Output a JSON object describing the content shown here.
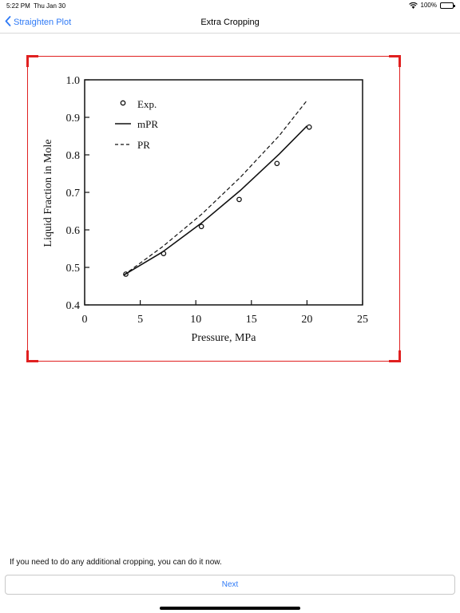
{
  "status": {
    "time": "5:22 PM",
    "date": "Thu Jan 30",
    "battery": "100%"
  },
  "nav": {
    "back_label": "Straighten Plot",
    "title": "Extra Cropping"
  },
  "chart_data": {
    "type": "scatter",
    "xlabel": "Pressure, MPa",
    "ylabel": "Liquid Fraction in Mole",
    "xlim": [
      0,
      25
    ],
    "ylim": [
      0.4,
      1.0
    ],
    "xticks": [
      0,
      5,
      10,
      15,
      20,
      25
    ],
    "yticks": [
      0.4,
      0.5,
      0.6,
      0.7,
      0.8,
      0.9,
      1.0
    ],
    "ytick_labels": [
      "0.4",
      "0.5",
      "0.6",
      "0.7",
      "0.8",
      "0.9",
      "1.0"
    ],
    "legend_position": "top-left",
    "series": [
      {
        "name": "Exp.",
        "style": "points",
        "x": [
          3.7,
          7.1,
          10.5,
          13.9,
          17.3,
          20.2
        ],
        "y": [
          0.482,
          0.537,
          0.609,
          0.681,
          0.777,
          0.874
        ]
      },
      {
        "name": "mPR",
        "style": "solid",
        "x": [
          3.5,
          7,
          10.5,
          14,
          17.5,
          20
        ],
        "y": [
          0.479,
          0.541,
          0.618,
          0.705,
          0.802,
          0.877
        ]
      },
      {
        "name": "PR",
        "style": "dashed",
        "x": [
          3.5,
          7,
          10.5,
          14,
          17.5,
          20
        ],
        "y": [
          0.479,
          0.555,
          0.641,
          0.74,
          0.851,
          0.945
        ]
      }
    ]
  },
  "footer": {
    "instruction": "If you need to do any additional cropping, you can do it now.",
    "next_label": "Next"
  }
}
